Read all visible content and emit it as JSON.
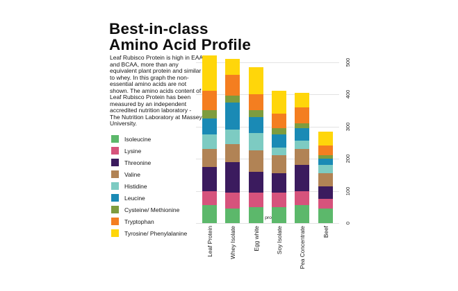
{
  "header": {
    "title_line1": "Best-in-class",
    "title_line2": "Amino Acid Profile"
  },
  "description": "Leaf Rubisco Protein is high in EAA and BCAA, more than any equivalent plant protein and similar to whey. In this graph the non-essential amino acids are not shown. The amino acids content of Leaf Rubisco Protein has been measured by an independent accredited nutrition laboratory - The Nutrition Laboratory at Massey University.",
  "chart_data": {
    "type": "bar",
    "stacked": true,
    "title": "",
    "xlabel": "",
    "ylabel": "mg/g protein",
    "unit_label": "mg/g protein",
    "grid": true,
    "legend_position": "left",
    "ylim": [
      0,
      540
    ],
    "y_ticks": [
      0,
      100,
      200,
      300,
      400,
      500
    ],
    "categories": [
      "Leaf Protein",
      "Whey Isolate",
      "Egg white",
      "Soy Isolate",
      "Pea Concentrate",
      "Beef"
    ],
    "series": [
      {
        "name": "Isoleucine",
        "color": "#5CB86B",
        "values": [
          55,
          45,
          50,
          50,
          55,
          45
        ]
      },
      {
        "name": "Lysine",
        "color": "#D6537C",
        "values": [
          45,
          50,
          45,
          45,
          45,
          30
        ]
      },
      {
        "name": "Threonine",
        "color": "#3B1B5E",
        "values": [
          75,
          95,
          65,
          60,
          80,
          40
        ]
      },
      {
        "name": "Valine",
        "color": "#B18355",
        "values": [
          55,
          55,
          65,
          55,
          50,
          40
        ]
      },
      {
        "name": "Histidine",
        "color": "#7DCBC2",
        "values": [
          45,
          45,
          55,
          25,
          25,
          25
        ]
      },
      {
        "name": "Leucine",
        "color": "#1A8AB5",
        "values": [
          50,
          85,
          50,
          40,
          40,
          20
        ]
      },
      {
        "name": "Cysteine/ Methionine",
        "color": "#7E9C3E",
        "values": [
          25,
          20,
          20,
          20,
          15,
          10
        ]
      },
      {
        "name": "Tryptophan",
        "color": "#F47E20",
        "values": [
          60,
          65,
          50,
          45,
          50,
          30
        ]
      },
      {
        "name": "Tyrosine/ Phenylalanine",
        "color": "#FFD60A",
        "values": [
          110,
          50,
          85,
          70,
          45,
          45
        ]
      }
    ],
    "totals": [
      520,
      510,
      485,
      410,
      405,
      285
    ]
  }
}
